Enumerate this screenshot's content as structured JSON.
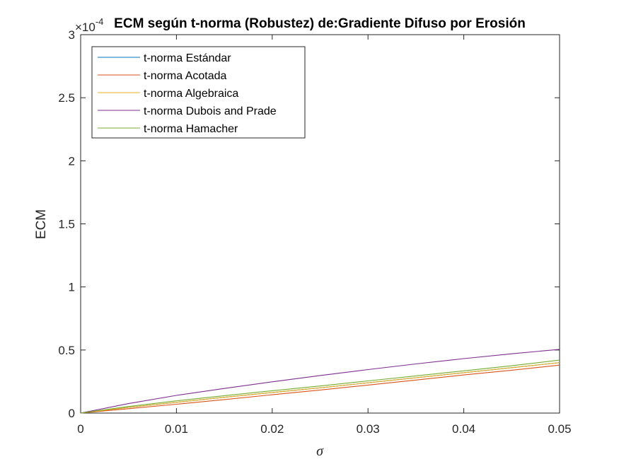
{
  "chart_data": {
    "type": "line",
    "title": "ECM según t-norma (Robustez) de:Gradiente Difuso por Erosión",
    "xlabel": "σ",
    "ylabel": "ECM",
    "y_exponent_base": "×10",
    "y_exponent_power": "-4",
    "xlim": [
      0,
      0.05
    ],
    "ylim": [
      0,
      3
    ],
    "xticks": [
      0,
      0.01,
      0.02,
      0.03,
      0.04,
      0.05
    ],
    "xtick_labels": [
      "0",
      "0.01",
      "0.02",
      "0.03",
      "0.04",
      "0.05"
    ],
    "yticks": [
      0,
      0.5,
      1,
      1.5,
      2,
      2.5,
      3
    ],
    "ytick_labels": [
      "0",
      "0.5",
      "1",
      "1.5",
      "2",
      "2.5",
      "3"
    ],
    "grid": false,
    "legend_position": "top-left",
    "x": [
      0,
      0.005,
      0.01,
      0.015,
      0.02,
      0.025,
      0.03,
      0.035,
      0.04,
      0.045,
      0.05
    ],
    "series": [
      {
        "name": "t-norma Estándar",
        "color": "#0072BD",
        "values": [
          0,
          0.045,
          0.085,
          0.125,
          0.163,
          0.2,
          0.24,
          0.28,
          0.32,
          0.36,
          0.4
        ]
      },
      {
        "name": "t-norma Acotada",
        "color": "#D95319",
        "values": [
          0,
          0.035,
          0.07,
          0.107,
          0.145,
          0.183,
          0.222,
          0.262,
          0.302,
          0.34,
          0.38
        ]
      },
      {
        "name": "t-norma Algebraica",
        "color": "#EDB120",
        "values": [
          0,
          0.045,
          0.085,
          0.125,
          0.163,
          0.2,
          0.24,
          0.28,
          0.32,
          0.36,
          0.4
        ]
      },
      {
        "name": "t-norma Dubois and Prade",
        "color": "#7E2F8E",
        "values": [
          0,
          0.075,
          0.14,
          0.195,
          0.248,
          0.298,
          0.345,
          0.39,
          0.432,
          0.47,
          0.505
        ]
      },
      {
        "name": "t-norma Hamacher",
        "color": "#77AC30",
        "values": [
          0,
          0.052,
          0.097,
          0.138,
          0.177,
          0.215,
          0.255,
          0.295,
          0.335,
          0.375,
          0.42
        ]
      }
    ]
  }
}
